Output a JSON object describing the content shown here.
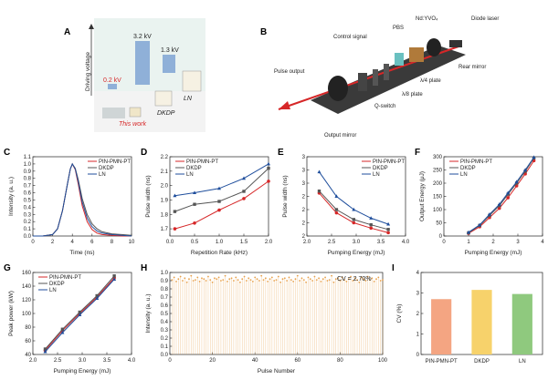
{
  "figure": {
    "panelA": {
      "label": "A",
      "ylabel": "Driving voltage",
      "voltages": [
        "0.2 kV",
        "3.2 kV",
        "1.3 kV"
      ],
      "devices": [
        "This work",
        "DKDP",
        "LN"
      ],
      "colors": {
        "this_work": "#d62728",
        "bar": "#8fb0d8"
      }
    },
    "panelB": {
      "label": "B",
      "components": [
        "Control signal",
        "PBS",
        "Nd:YVO₄",
        "Diode laser",
        "Pulse output",
        "Rear mirror",
        "λ/4 plate",
        "λ/8 plate",
        "Q-switch",
        "Output mirror"
      ]
    }
  },
  "chart_data": [
    {
      "id": "C",
      "label": "C",
      "type": "line",
      "xlabel": "Time (ns)",
      "ylabel": "Intensity (a. u.)",
      "xlim": [
        0,
        10
      ],
      "ylim": [
        0,
        1.1
      ],
      "xticks": [
        0,
        2,
        4,
        6,
        8,
        10
      ],
      "yticks": [
        0.0,
        0.1,
        0.2,
        0.3,
        0.4,
        0.5,
        0.6,
        0.7,
        0.8,
        0.9,
        1.0,
        1.1
      ],
      "legend": "top-right",
      "series": [
        {
          "name": "PIN-PMN-PT",
          "color": "#d62728",
          "x": [
            0,
            1,
            2,
            2.5,
            3,
            3.5,
            3.8,
            4,
            4.3,
            4.6,
            5,
            5.5,
            6,
            6.5,
            7,
            8,
            9,
            10
          ],
          "y": [
            0,
            0,
            0.02,
            0.1,
            0.35,
            0.72,
            0.93,
            1.0,
            0.92,
            0.72,
            0.42,
            0.2,
            0.09,
            0.04,
            0.02,
            0.01,
            0,
            0
          ]
        },
        {
          "name": "DKDP",
          "color": "#555555",
          "x": [
            0,
            1,
            2,
            2.5,
            3,
            3.5,
            3.8,
            4,
            4.3,
            4.6,
            5,
            5.5,
            6,
            6.5,
            7,
            8,
            9,
            10
          ],
          "y": [
            0,
            0,
            0.02,
            0.1,
            0.35,
            0.72,
            0.93,
            1.0,
            0.94,
            0.78,
            0.52,
            0.3,
            0.17,
            0.1,
            0.06,
            0.03,
            0.02,
            0.01
          ]
        },
        {
          "name": "LN",
          "color": "#1f4e9c",
          "x": [
            0,
            1,
            2,
            2.5,
            3,
            3.5,
            3.8,
            4,
            4.3,
            4.6,
            5,
            5.5,
            6,
            6.5,
            7,
            8,
            9,
            10
          ],
          "y": [
            0,
            0,
            0.02,
            0.1,
            0.35,
            0.72,
            0.93,
            1.0,
            0.93,
            0.75,
            0.47,
            0.25,
            0.13,
            0.07,
            0.04,
            0.02,
            0.01,
            0
          ]
        }
      ]
    },
    {
      "id": "D",
      "label": "D",
      "type": "line",
      "xlabel": "Repetition Rate (kHz)",
      "ylabel": "Pulse width (ns)",
      "xlim": [
        0,
        2
      ],
      "ylim": [
        1.65,
        2.2
      ],
      "xticks": [
        0.0,
        0.5,
        1.0,
        1.5,
        2.0
      ],
      "yticks": [
        1.7,
        1.8,
        1.9,
        2.0,
        2.1,
        2.2
      ],
      "legend": "top-left",
      "series": [
        {
          "name": "PIN-PMN-PT",
          "color": "#d62728",
          "x": [
            0.1,
            0.5,
            1.0,
            1.5,
            2.0
          ],
          "y": [
            1.7,
            1.74,
            1.83,
            1.91,
            2.03
          ]
        },
        {
          "name": "DKDP",
          "color": "#555555",
          "x": [
            0.1,
            0.5,
            1.0,
            1.5,
            2.0
          ],
          "y": [
            1.82,
            1.87,
            1.89,
            1.96,
            2.12
          ]
        },
        {
          "name": "LN",
          "color": "#1f4e9c",
          "x": [
            0.1,
            0.5,
            1.0,
            1.5,
            2.0
          ],
          "y": [
            1.93,
            1.95,
            1.98,
            2.05,
            2.15
          ]
        }
      ]
    },
    {
      "id": "E",
      "label": "E",
      "type": "line",
      "xlabel": "Pumping Energy (mJ)",
      "ylabel": "Pulse width (ns)",
      "xlim": [
        2,
        4
      ],
      "ylim": [
        1.8,
        3.0
      ],
      "xticks": [
        2.0,
        2.5,
        3.0,
        3.5,
        4.0
      ],
      "yticks": [
        1.8,
        2.0,
        2.2,
        2.4,
        2.6,
        2.8,
        3.0
      ],
      "legend": "top-right",
      "series": [
        {
          "name": "PIN-PMN-PT",
          "color": "#d62728",
          "x": [
            2.25,
            2.6,
            2.95,
            3.3,
            3.65
          ],
          "y": [
            2.45,
            2.15,
            2.0,
            1.92,
            1.85
          ]
        },
        {
          "name": "DKDP",
          "color": "#555555",
          "x": [
            2.25,
            2.6,
            2.95,
            3.3,
            3.65
          ],
          "y": [
            2.48,
            2.2,
            2.05,
            1.97,
            1.9
          ]
        },
        {
          "name": "LN",
          "color": "#1f4e9c",
          "x": [
            2.25,
            2.6,
            2.95,
            3.3,
            3.65
          ],
          "y": [
            2.77,
            2.4,
            2.2,
            2.07,
            1.98
          ]
        }
      ]
    },
    {
      "id": "F",
      "label": "F",
      "type": "line",
      "xlabel": "Pumping Energy (mJ)",
      "ylabel": "Output Energy (μJ)",
      "xlim": [
        0,
        4
      ],
      "ylim": [
        0,
        300
      ],
      "xticks": [
        0.0,
        1.0,
        2.0,
        3.0,
        4.0
      ],
      "yticks": [
        0,
        50,
        100,
        150,
        200,
        250,
        300
      ],
      "legend": "top-left",
      "series": [
        {
          "name": "PIN-PMN-PT",
          "color": "#d62728",
          "x": [
            1.0,
            1.45,
            1.85,
            2.25,
            2.6,
            2.95,
            3.3,
            3.65
          ],
          "y": [
            10,
            35,
            70,
            105,
            145,
            190,
            235,
            285
          ]
        },
        {
          "name": "DKDP",
          "color": "#555555",
          "x": [
            1.0,
            1.45,
            1.85,
            2.25,
            2.6,
            2.95,
            3.3,
            3.65
          ],
          "y": [
            12,
            40,
            78,
            115,
            158,
            200,
            245,
            295
          ]
        },
        {
          "name": "LN",
          "color": "#1f4e9c",
          "x": [
            1.0,
            1.45,
            1.85,
            2.25,
            2.6,
            2.95,
            3.3,
            3.65
          ],
          "y": [
            14,
            42,
            82,
            120,
            163,
            205,
            250,
            298
          ]
        }
      ]
    },
    {
      "id": "G",
      "label": "G",
      "type": "line",
      "xlabel": "Pumping Energy (mJ)",
      "ylabel": "Peak power (kW)",
      "xlim": [
        2,
        4
      ],
      "ylim": [
        40,
        160
      ],
      "xticks": [
        2.0,
        2.5,
        3.0,
        3.5,
        4.0
      ],
      "yticks": [
        40,
        60,
        80,
        100,
        120,
        140,
        160
      ],
      "legend": "top-left",
      "series": [
        {
          "name": "PIN-PMN-PT",
          "color": "#d62728",
          "x": [
            2.25,
            2.6,
            2.95,
            3.3,
            3.65
          ],
          "y": [
            46,
            75,
            100,
            124,
            152
          ]
        },
        {
          "name": "DKDP",
          "color": "#555555",
          "x": [
            2.25,
            2.6,
            2.95,
            3.3,
            3.65
          ],
          "y": [
            48,
            77,
            102,
            126,
            155
          ]
        },
        {
          "name": "LN",
          "color": "#1f4e9c",
          "x": [
            2.25,
            2.6,
            2.95,
            3.3,
            3.65
          ],
          "y": [
            44,
            72,
            98,
            122,
            150
          ]
        }
      ]
    },
    {
      "id": "H",
      "label": "H",
      "type": "bar",
      "xlabel": "Pulse Number",
      "ylabel": "Intensity (a. u.)",
      "xlim": [
        0,
        100
      ],
      "ylim": [
        0,
        1.0
      ],
      "xticks": [
        0,
        20,
        40,
        60,
        80,
        100
      ],
      "yticks": [
        0.0,
        0.1,
        0.2,
        0.3,
        0.4,
        0.5,
        0.6,
        0.7,
        0.8,
        0.9,
        1.0
      ],
      "annotation": "CV = 2.70%",
      "color": "#e8a04a",
      "values": [
        0.91,
        0.94,
        0.89,
        0.92,
        0.95,
        0.9,
        0.93,
        0.88,
        0.92,
        0.96,
        0.9,
        0.91,
        0.94,
        0.89,
        0.93,
        0.92,
        0.9,
        0.95,
        0.91,
        0.88,
        0.93,
        0.92,
        0.94,
        0.9,
        0.91,
        0.96,
        0.89,
        0.92,
        0.93,
        0.9,
        0.94,
        0.91,
        0.88,
        0.92,
        0.95,
        0.9,
        0.93,
        0.91,
        0.89,
        0.94,
        0.92,
        0.9,
        0.96,
        0.91,
        0.93,
        0.89,
        0.92,
        0.94,
        0.9,
        0.91,
        0.95,
        0.88,
        0.92,
        0.93,
        0.9,
        0.94,
        0.91,
        0.89,
        0.92,
        0.96,
        0.9,
        0.93,
        0.91,
        0.88,
        0.94,
        0.92,
        0.9,
        0.95,
        0.91,
        0.93,
        0.89,
        0.92,
        0.94,
        0.9,
        0.91,
        0.96,
        0.88,
        0.92,
        0.93,
        0.9,
        0.94,
        0.91,
        0.89,
        0.92,
        0.95,
        0.9,
        0.93,
        0.91,
        0.88,
        0.94,
        0.92,
        0.9,
        0.95,
        0.91,
        0.93,
        0.89,
        0.92,
        0.94,
        0.9,
        0.91
      ]
    },
    {
      "id": "I",
      "label": "I",
      "type": "bar",
      "xlabel": "",
      "ylabel": "CV (%)",
      "ylim": [
        0,
        4
      ],
      "yticks": [
        0,
        1,
        2,
        3,
        4
      ],
      "categories": [
        "PIN-PMN-PT",
        "DKDP",
        "LN"
      ],
      "values": [
        2.7,
        3.15,
        2.95
      ],
      "colors": [
        "#f4a582",
        "#f7d26b",
        "#8fc97e"
      ]
    }
  ]
}
